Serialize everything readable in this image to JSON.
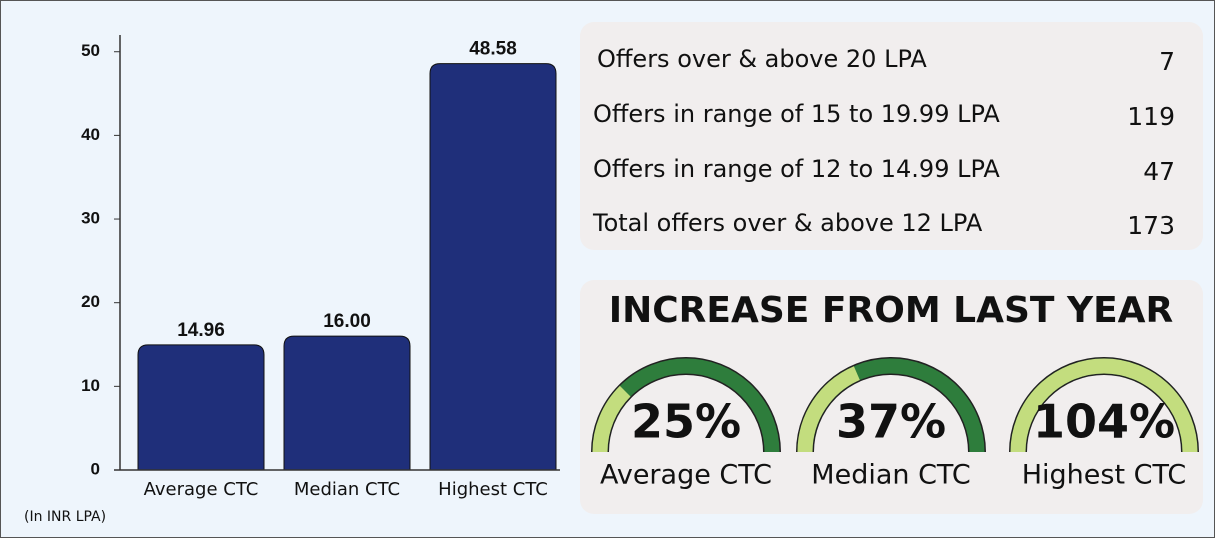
{
  "chart_data": [
    {
      "type": "bar",
      "categories": [
        "Average CTC",
        "Median CTC",
        "Highest CTC"
      ],
      "values": [
        14.96,
        16.0,
        48.58
      ],
      "value_labels": [
        "14.96",
        "16.00",
        "48.58"
      ],
      "color": "#1f2f7a",
      "ylim": [
        0,
        52
      ],
      "yticks": [
        0,
        10,
        20,
        30,
        40,
        50
      ],
      "annotation": "(In INR LPA)"
    },
    {
      "type": "gauge",
      "title": "INCREASE FROM LAST YEAR",
      "categories": [
        "Average CTC",
        "Median CTC",
        "Highest CTC"
      ],
      "values": [
        25,
        37,
        104
      ],
      "value_labels": [
        "25%",
        "37%",
        "104%"
      ],
      "color": "#c3dd7e",
      "track_color": "#2e7d3c"
    }
  ],
  "table": {
    "rows": [
      [
        "Offers over & above 20 LPA",
        7
      ],
      [
        "Offers in range of 15 to 19.99 LPA",
        119
      ],
      [
        "Offers in range of 12 to 14.99 LPA",
        47
      ],
      [
        "Total offers over & above 12 LPA",
        173
      ]
    ]
  }
}
